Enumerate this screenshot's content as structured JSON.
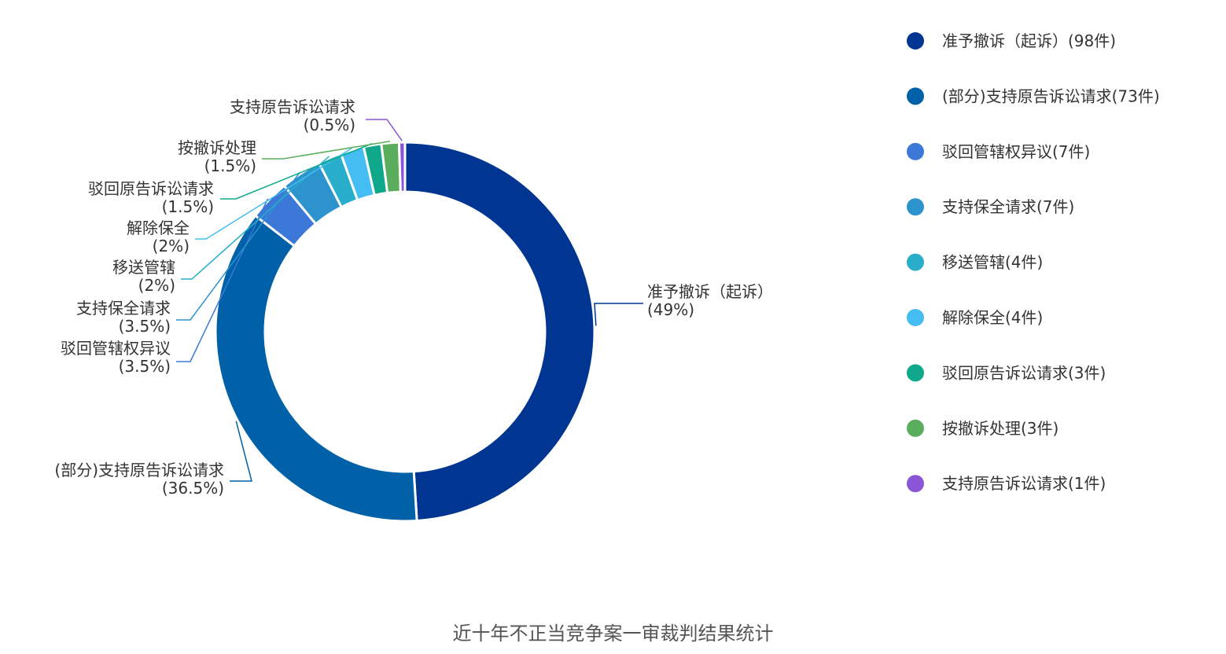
{
  "chart_data": {
    "type": "pie",
    "variant": "donut",
    "title": "",
    "caption": "近十年不正当竞争案一审裁判结果统计",
    "legend_position": "right",
    "slices": [
      {
        "category": "准予撤诉（起诉）",
        "value": 98,
        "percent_label": "(49%)",
        "legend": "准予撤诉（起诉）(98件)",
        "color": "#003591"
      },
      {
        "category": "(部分)支持原告诉讼请求",
        "value": 73,
        "percent_label": "(36.5%)",
        "legend": "(部分)支持原告诉讼请求(73件)",
        "color": "#0060a8"
      },
      {
        "category": "驳回管辖权异议",
        "value": 7,
        "percent_label": "(3.5%)",
        "legend": "驳回管辖权异议(7件)",
        "color": "#3b78d8"
      },
      {
        "category": "支持保全请求",
        "value": 7,
        "percent_label": "(3.5%)",
        "legend": "支持保全请求(7件)",
        "color": "#2c93cc"
      },
      {
        "category": "移送管辖",
        "value": 4,
        "percent_label": "(2%)",
        "legend": "移送管辖(4件)",
        "color": "#28aecb"
      },
      {
        "category": "解除保全",
        "value": 4,
        "percent_label": "(2%)",
        "legend": "解除保全(4件)",
        "color": "#44bdf2"
      },
      {
        "category": "驳回原告诉讼请求",
        "value": 3,
        "percent_label": "(1.5%)",
        "legend": "驳回原告诉讼请求(3件)",
        "color": "#10a88b"
      },
      {
        "category": "按撤诉处理",
        "value": 3,
        "percent_label": "(1.5%)",
        "legend": "按撤诉处理(3件)",
        "color": "#5aad5c"
      },
      {
        "category": "支持原告诉讼请求",
        "value": 1,
        "percent_label": "(0.5%)",
        "legend": "支持原告诉讼请求(1件)",
        "color": "#8a55d6"
      }
    ]
  }
}
